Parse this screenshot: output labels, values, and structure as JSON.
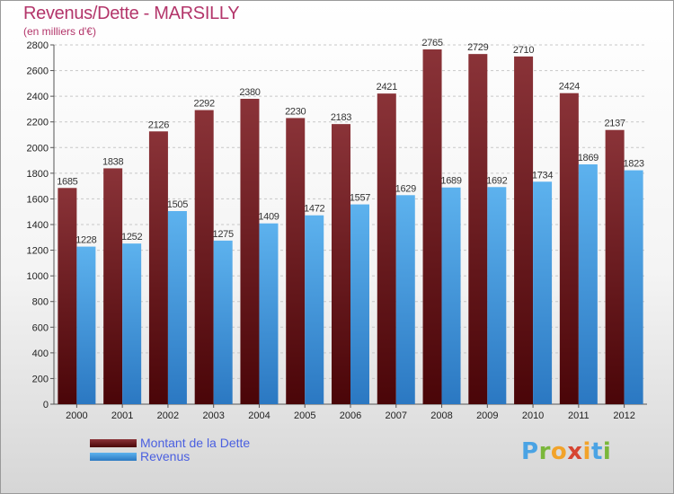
{
  "header": {
    "title": "Revenus/Dette - MARSILLY",
    "subtitle": "(en milliers d'€)"
  },
  "chart_data": {
    "type": "bar",
    "title": "Revenus/Dette - MARSILLY",
    "subtitle": "(en milliers d'€)",
    "xlabel": "",
    "ylabel": "",
    "ylim": [
      0,
      2800
    ],
    "yticks": [
      0,
      200,
      400,
      600,
      800,
      1000,
      1200,
      1400,
      1600,
      1800,
      2000,
      2200,
      2400,
      2600,
      2800
    ],
    "grid": true,
    "legend_position": "bottom-left",
    "categories": [
      "2000",
      "2001",
      "2002",
      "2003",
      "2004",
      "2005",
      "2006",
      "2007",
      "2008",
      "2009",
      "2010",
      "2011",
      "2012"
    ],
    "series": [
      {
        "name": "Montant de la Dette",
        "color": "#7a2228",
        "values": [
          1685,
          1838,
          2126,
          2292,
          2380,
          2230,
          2183,
          2421,
          2765,
          2729,
          2710,
          2424,
          2137
        ]
      },
      {
        "name": "Revenus",
        "color": "#4aa3e4",
        "values": [
          1228,
          1252,
          1505,
          1275,
          1409,
          1472,
          1557,
          1629,
          1689,
          1692,
          1734,
          1869,
          1823
        ]
      }
    ]
  },
  "legend": {
    "items": [
      {
        "label": "Montant de la Dette",
        "color": "#7a2228"
      },
      {
        "label": "Revenus",
        "color": "#4aa3e4"
      }
    ]
  },
  "logo": {
    "text": "Proxiti"
  }
}
